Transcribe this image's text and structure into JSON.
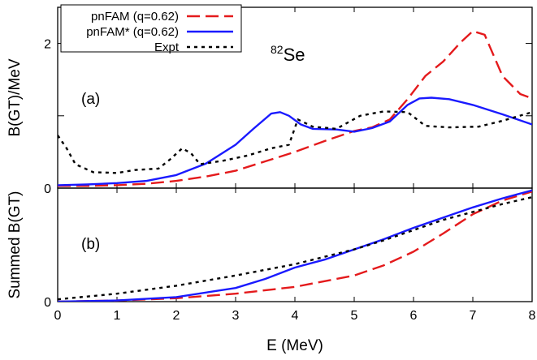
{
  "chart_data": [
    {
      "panel_label": "(a)",
      "type": "line",
      "ylabel": "B(GT)/MeV",
      "xlabel": "",
      "xlim": [
        0,
        8
      ],
      "ylim": [
        0,
        2.5
      ],
      "yticks": [
        "0",
        "2"
      ],
      "annotation": {
        "sup": "82",
        "base": "Se"
      },
      "legend_placement": "top-left",
      "series": [
        {
          "name": "pnFAM (q=0.62)",
          "color": "#e41a1c",
          "dash": "dashed",
          "points": [
            [
              0,
              0.03
            ],
            [
              0.5,
              0.03
            ],
            [
              1,
              0.04
            ],
            [
              1.5,
              0.06
            ],
            [
              2,
              0.1
            ],
            [
              2.5,
              0.16
            ],
            [
              3,
              0.24
            ],
            [
              3.5,
              0.37
            ],
            [
              4,
              0.5
            ],
            [
              4.5,
              0.65
            ],
            [
              5,
              0.79
            ],
            [
              5.3,
              0.84
            ],
            [
              5.6,
              0.95
            ],
            [
              5.9,
              1.23
            ],
            [
              6.2,
              1.55
            ],
            [
              6.5,
              1.75
            ],
            [
              6.8,
              2.02
            ],
            [
              7.0,
              2.17
            ],
            [
              7.2,
              2.12
            ],
            [
              7.5,
              1.55
            ],
            [
              7.8,
              1.3
            ],
            [
              8,
              1.24
            ]
          ]
        },
        {
          "name": "pnFAM* (q=0.62)",
          "color": "#1a1aff",
          "dash": "solid",
          "points": [
            [
              0,
              0.04
            ],
            [
              0.5,
              0.05
            ],
            [
              1,
              0.07
            ],
            [
              1.5,
              0.1
            ],
            [
              2,
              0.18
            ],
            [
              2.5,
              0.34
            ],
            [
              3,
              0.6
            ],
            [
              3.3,
              0.82
            ],
            [
              3.6,
              1.03
            ],
            [
              3.75,
              1.05
            ],
            [
              3.9,
              1.0
            ],
            [
              4.1,
              0.88
            ],
            [
              4.3,
              0.82
            ],
            [
              4.7,
              0.81
            ],
            [
              5.0,
              0.78
            ],
            [
              5.3,
              0.83
            ],
            [
              5.6,
              0.92
            ],
            [
              5.9,
              1.15
            ],
            [
              6.1,
              1.24
            ],
            [
              6.3,
              1.25
            ],
            [
              6.6,
              1.23
            ],
            [
              7,
              1.15
            ],
            [
              7.5,
              1.02
            ],
            [
              8,
              0.88
            ]
          ]
        },
        {
          "name": "Expt",
          "color": "#000000",
          "dash": "dotted",
          "points": [
            [
              0,
              0.73
            ],
            [
              0.15,
              0.55
            ],
            [
              0.3,
              0.33
            ],
            [
              0.6,
              0.22
            ],
            [
              1,
              0.21
            ],
            [
              1.3,
              0.25
            ],
            [
              1.7,
              0.27
            ],
            [
              1.9,
              0.4
            ],
            [
              2.1,
              0.55
            ],
            [
              2.25,
              0.48
            ],
            [
              2.4,
              0.33
            ],
            [
              2.8,
              0.38
            ],
            [
              3.2,
              0.45
            ],
            [
              3.6,
              0.55
            ],
            [
              3.9,
              0.6
            ],
            [
              4.05,
              0.95
            ],
            [
              4.3,
              0.85
            ],
            [
              4.7,
              0.82
            ],
            [
              5.1,
              1.0
            ],
            [
              5.5,
              1.06
            ],
            [
              5.9,
              1.05
            ],
            [
              6.2,
              0.86
            ],
            [
              6.6,
              0.84
            ],
            [
              7.1,
              0.85
            ],
            [
              7.5,
              0.93
            ],
            [
              8,
              1.05
            ]
          ]
        }
      ]
    },
    {
      "panel_label": "(b)",
      "type": "line",
      "ylabel": "Summed B(GT)",
      "xlabel": "E (MeV)",
      "xlim": [
        0,
        8
      ],
      "ylim": [
        0,
        1
      ],
      "xticks": [
        "0",
        "1",
        "2",
        "3",
        "4",
        "5",
        "6",
        "7",
        "8"
      ],
      "yticks": [
        "0"
      ],
      "series": [
        {
          "name": "pnFAM (q=0.62)",
          "color": "#e41a1c",
          "dash": "dashed",
          "points": [
            [
              0,
              0.0
            ],
            [
              1,
              0.01
            ],
            [
              2,
              0.03
            ],
            [
              3,
              0.07
            ],
            [
              4,
              0.13
            ],
            [
              5,
              0.23
            ],
            [
              5.5,
              0.32
            ],
            [
              6,
              0.44
            ],
            [
              6.5,
              0.6
            ],
            [
              7,
              0.77
            ],
            [
              7.5,
              0.89
            ],
            [
              8,
              0.97
            ]
          ]
        },
        {
          "name": "pnFAM* (q=0.62)",
          "color": "#1a1aff",
          "dash": "solid",
          "points": [
            [
              0,
              0.0
            ],
            [
              1,
              0.01
            ],
            [
              2,
              0.04
            ],
            [
              3,
              0.12
            ],
            [
              3.5,
              0.2
            ],
            [
              4,
              0.3
            ],
            [
              4.5,
              0.37
            ],
            [
              5,
              0.46
            ],
            [
              5.5,
              0.55
            ],
            [
              6,
              0.65
            ],
            [
              6.5,
              0.74
            ],
            [
              7,
              0.83
            ],
            [
              7.5,
              0.91
            ],
            [
              8,
              0.98
            ]
          ]
        },
        {
          "name": "Expt",
          "color": "#000000",
          "dash": "dotted",
          "points": [
            [
              0,
              0.02
            ],
            [
              1,
              0.07
            ],
            [
              2,
              0.14
            ],
            [
              3,
              0.23
            ],
            [
              4,
              0.33
            ],
            [
              5,
              0.46
            ],
            [
              5.5,
              0.54
            ],
            [
              6,
              0.63
            ],
            [
              6.5,
              0.72
            ],
            [
              7,
              0.79
            ],
            [
              7.5,
              0.86
            ],
            [
              8,
              0.92
            ]
          ]
        }
      ]
    }
  ]
}
